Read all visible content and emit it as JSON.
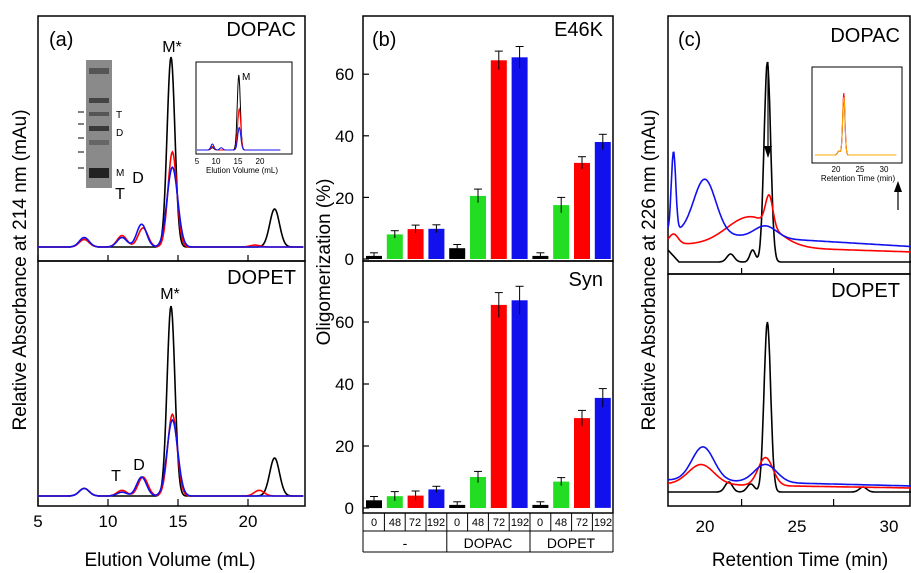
{
  "colors": {
    "black": "#000000",
    "red": "#ff0000",
    "green": "#22dd22",
    "blue": "#1111ee"
  },
  "chart_data": [
    {
      "type": "line",
      "panel": "(a)",
      "ylabel": "Relative Absorbance at 214 nm (mAu)",
      "xlabel": "Elution Volume (mL)",
      "xlim": [
        5,
        24
      ],
      "xticks": [
        "5",
        "10",
        "15",
        "20"
      ],
      "subplots": [
        {
          "title": "DOPAC",
          "annotations": [
            "T",
            "D",
            "M*"
          ]
        },
        {
          "title": "DOPET",
          "annotations": [
            "T",
            "D",
            "M*"
          ]
        }
      ],
      "series_colors": [
        "#000000",
        "#ff0000",
        "#1111ee"
      ],
      "peaks_black": [
        [
          8.3,
          0.04
        ],
        [
          14.5,
          1.0
        ],
        [
          21.9,
          0.2
        ]
      ],
      "peaks_colored_DOPAC": {
        "red": [
          [
            8.3,
            0.04
          ],
          [
            11.0,
            0.06
          ],
          [
            12.5,
            0.1
          ],
          [
            14.6,
            0.5
          ],
          [
            20.5,
            0.01
          ]
        ],
        "blue": [
          [
            8.3,
            0.05
          ],
          [
            11.0,
            0.05
          ],
          [
            12.4,
            0.12
          ],
          [
            14.6,
            0.42
          ]
        ]
      },
      "peaks_colored_DOPET": {
        "red": [
          [
            8.3,
            0.04
          ],
          [
            11.0,
            0.03
          ],
          [
            12.5,
            0.1
          ],
          [
            14.6,
            0.43
          ],
          [
            20.8,
            0.03
          ]
        ],
        "blue": [
          [
            8.3,
            0.04
          ],
          [
            11.0,
            0.02
          ],
          [
            12.4,
            0.1
          ],
          [
            14.6,
            0.4
          ]
        ]
      },
      "inset": {
        "xlabel": "Elution Volume (mL)",
        "xticks": [
          "5",
          "10",
          "15",
          "20"
        ],
        "label": "M",
        "gel_labels": [
          "T",
          "D",
          "M"
        ]
      }
    },
    {
      "type": "bar",
      "panel": "(b)",
      "ylabel": "Oligomerization (%)",
      "ylim": [
        0,
        75
      ],
      "yticks": [
        "0",
        "20",
        "40",
        "60"
      ],
      "categories": [
        "0",
        "48",
        "72",
        "192",
        "0",
        "48",
        "72",
        "192",
        "0",
        "48",
        "72",
        "192"
      ],
      "groups": [
        "-",
        "DOPAC",
        "DOPET"
      ],
      "bar_colors": [
        "#000000",
        "#22dd22",
        "#ff0000",
        "#1111ee"
      ],
      "subplots": [
        {
          "title": "E46K",
          "values": [
            1.0,
            8.0,
            9.7,
            9.8,
            3.5,
            20.5,
            64.5,
            65.5,
            1.0,
            17.5,
            31.2,
            38.0
          ],
          "errors": [
            1.0,
            1.2,
            1.3,
            1.3,
            1.2,
            2.2,
            3.0,
            3.5,
            1.0,
            2.5,
            2.0,
            2.5
          ]
        },
        {
          "title": "Syn",
          "values": [
            2.5,
            3.8,
            4.0,
            6.0,
            1.0,
            10.0,
            65.5,
            67.0,
            1.0,
            8.5,
            29.0,
            35.5
          ],
          "errors": [
            1.2,
            1.5,
            1.5,
            1.0,
            1.0,
            1.8,
            4.0,
            4.5,
            1.0,
            1.3,
            2.5,
            3.0
          ]
        }
      ]
    },
    {
      "type": "line",
      "panel": "(c)",
      "ylabel": "Relative Absorbance at 226 nm (mAu)",
      "xlabel": "Retention Time (min)",
      "xlim": [
        16,
        33
      ],
      "xticks": [
        "20",
        "25",
        "30"
      ],
      "subplots": [
        {
          "title": "DOPAC"
        },
        {
          "title": "DOPET"
        }
      ],
      "inset": {
        "xlabel": "Retention Time (min)",
        "xticks": [
          "20",
          "25",
          "30"
        ]
      }
    }
  ]
}
